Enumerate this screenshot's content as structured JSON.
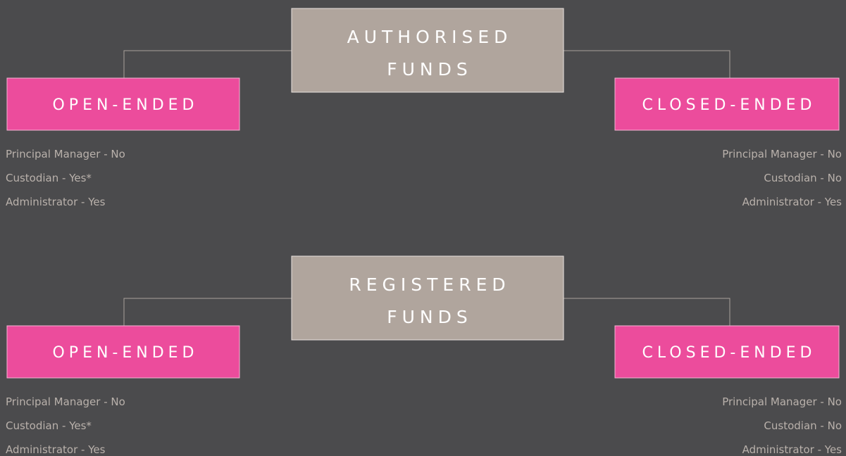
{
  "sections": [
    {
      "title": [
        "AUTHORISED",
        "FUNDS"
      ],
      "left": {
        "label": "OPEN-ENDED",
        "items": [
          "Principal Manager - No",
          "Custodian - Yes*",
          "Administrator - Yes"
        ]
      },
      "right": {
        "label": "CLOSED-ENDED",
        "items": [
          "Principal Manager - No",
          "Custodian - No",
          "Administrator - Yes"
        ]
      }
    },
    {
      "title": [
        "REGISTERED",
        "FUNDS"
      ],
      "left": {
        "label": "OPEN-ENDED",
        "items": [
          "Principal Manager - No",
          "Custodian - Yes*",
          "Administrator - Yes"
        ]
      },
      "right": {
        "label": "CLOSED-ENDED",
        "items": [
          "Principal Manager - No",
          "Custodian - No",
          "Administrator - Yes"
        ]
      }
    }
  ]
}
